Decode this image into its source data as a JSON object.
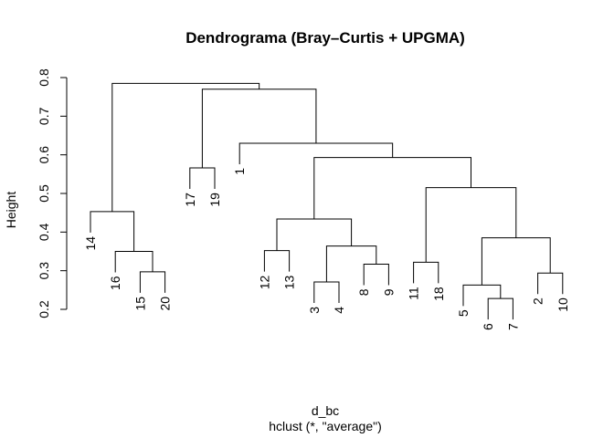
{
  "chart_data": {
    "type": "dendrogram",
    "title": "Dendrograma (Bray–Curtis + UPGMA)",
    "ylabel": "Height",
    "xlabel": "d_bc",
    "sub": "hclust (*, \"average\")",
    "ylim": [
      0.2,
      0.8
    ],
    "yticks": [
      "0.2",
      "0.3",
      "0.4",
      "0.5",
      "0.6",
      "0.7",
      "0.8"
    ],
    "order": [
      "14",
      "16",
      "15",
      "20",
      "17",
      "19",
      "1",
      "12",
      "13",
      "3",
      "4",
      "8",
      "9",
      "11",
      "18",
      "5",
      "6",
      "7",
      "2",
      "10"
    ],
    "merges": [
      {
        "a": "15",
        "b": "20",
        "height": 0.297
      },
      {
        "a": "16",
        "b": "15+20",
        "height": 0.35
      },
      {
        "a": "14",
        "b": "16+15+20",
        "height": 0.453
      },
      {
        "a": "17",
        "b": "19",
        "height": 0.566
      },
      {
        "a": "12",
        "b": "13",
        "height": 0.352
      },
      {
        "a": "3",
        "b": "4",
        "height": 0.271
      },
      {
        "a": "8",
        "b": "9",
        "height": 0.317
      },
      {
        "a": "3+4",
        "b": "8+9",
        "height": 0.364
      },
      {
        "a": "12+13",
        "b": "3+4+8+9",
        "height": 0.434
      },
      {
        "a": "11",
        "b": "18",
        "height": 0.322
      },
      {
        "a": "6",
        "b": "7",
        "height": 0.228
      },
      {
        "a": "5",
        "b": "6+7",
        "height": 0.263
      },
      {
        "a": "2",
        "b": "10",
        "height": 0.294
      },
      {
        "a": "5+6+7",
        "b": "2+10",
        "height": 0.385
      },
      {
        "a": "11+18",
        "b": "5+6+7+2+10",
        "height": 0.515
      },
      {
        "a": "12..9",
        "b": "11..10",
        "height": 0.593
      },
      {
        "a": "1",
        "b": "12..10",
        "height": 0.63
      },
      {
        "a": "17+19",
        "b": "1..10",
        "height": 0.77
      },
      {
        "a": "14..20",
        "b": "17..10",
        "height": 0.785
      }
    ]
  }
}
